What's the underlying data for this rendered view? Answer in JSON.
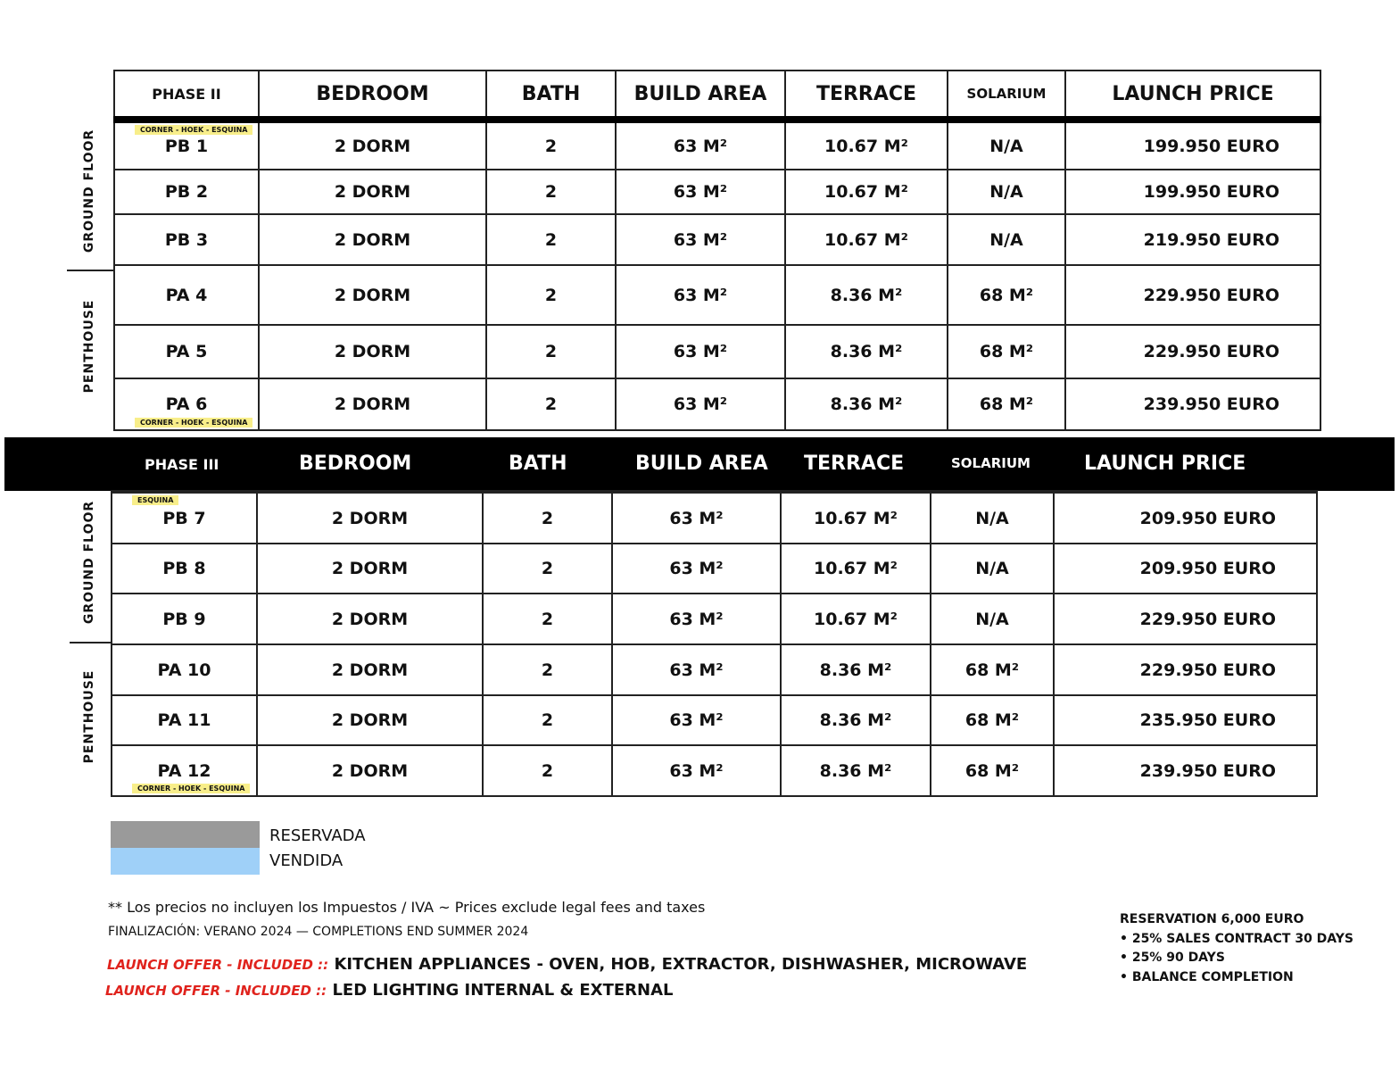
{
  "headers": {
    "bedroom": "BEDROOM",
    "bath": "BATH",
    "build_area": "BUILD AREA",
    "terrace": "TERRACE",
    "solarium": "SOLARIUM",
    "launch_price": "LAUNCH PRICE"
  },
  "phase2": {
    "title": "PHASE II",
    "groups": [
      "GROUND FLOOR",
      "PENTHOUSE"
    ],
    "rows": [
      {
        "unit": "PB 1",
        "tag": "CORNER - HOEK - ESQUINA",
        "bedroom": "2 DORM",
        "bath": "2",
        "build": "63 M²",
        "terrace": "10.67 M²",
        "solarium": "N/A",
        "price": "199.950 EURO"
      },
      {
        "unit": "PB 2",
        "bedroom": "2 DORM",
        "bath": "2",
        "build": "63 M²",
        "terrace": "10.67 M²",
        "solarium": "N/A",
        "price": "199.950 EURO"
      },
      {
        "unit": "PB 3",
        "bedroom": "2 DORM",
        "bath": "2",
        "build": "63 M²",
        "terrace": "10.67 M²",
        "solarium": "N/A",
        "price": "219.950 EURO"
      },
      {
        "unit": "PA 4",
        "bedroom": "2 DORM",
        "bath": "2",
        "build": "63 M²",
        "terrace": "8.36 M²",
        "solarium": "68 M²",
        "price": "229.950 EURO"
      },
      {
        "unit": "PA 5",
        "bedroom": "2 DORM",
        "bath": "2",
        "build": "63 M²",
        "terrace": "8.36 M²",
        "solarium": "68 M²",
        "price": "229.950 EURO"
      },
      {
        "unit": "PA 6",
        "tag": "CORNER - HOEK - ESQUINA",
        "bedroom": "2 DORM",
        "bath": "2",
        "build": "63 M²",
        "terrace": "8.36 M²",
        "solarium": "68 M²",
        "price": "239.950 EURO"
      }
    ]
  },
  "phase3": {
    "title": "PHASE III",
    "groups": [
      "GROUND FLOOR",
      "PENTHOUSE"
    ],
    "rows": [
      {
        "unit": "PB 7",
        "tag": "ESQUINA",
        "bedroom": "2 DORM",
        "bath": "2",
        "build": "63 M²",
        "terrace": "10.67 M²",
        "solarium": "N/A",
        "price": "209.950 EURO"
      },
      {
        "unit": "PB 8",
        "bedroom": "2 DORM",
        "bath": "2",
        "build": "63 M²",
        "terrace": "10.67 M²",
        "solarium": "N/A",
        "price": "209.950 EURO"
      },
      {
        "unit": "PB 9",
        "bedroom": "2 DORM",
        "bath": "2",
        "build": "63 M²",
        "terrace": "10.67 M²",
        "solarium": "N/A",
        "price": "229.950 EURO"
      },
      {
        "unit": "PA 10",
        "bedroom": "2 DORM",
        "bath": "2",
        "build": "63 M²",
        "terrace": "8.36 M²",
        "solarium": "68 M²",
        "price": "229.950 EURO"
      },
      {
        "unit": "PA 11",
        "bedroom": "2 DORM",
        "bath": "2",
        "build": "63 M²",
        "terrace": "8.36 M²",
        "solarium": "68 M²",
        "price": "235.950 EURO"
      },
      {
        "unit": "PA 12",
        "tag": "CORNER - HOEK - ESQUINA",
        "bedroom": "2 DORM",
        "bath": "2",
        "build": "63 M²",
        "terrace": "8.36 M²",
        "solarium": "68 M²",
        "price": "239.950 EURO"
      }
    ]
  },
  "legend": [
    {
      "label": "RESERVADA",
      "color": "#9a9a9a"
    },
    {
      "label": "VENDIDA",
      "color": "#9fd0f8"
    }
  ],
  "notes": {
    "taxes": "** Los precios no incluyen los Impuestos / IVA ~ Prices exclude legal fees and taxes",
    "completion": "FINALIZACIÓN: VERANO 2024 — COMPLETIONS END SUMMER 2024"
  },
  "offers": [
    {
      "prefix": "LAUNCH OFFER - INCLUDED ::",
      "text": "KITCHEN APPLIANCES - OVEN, HOB, EXTRACTOR, DISHWASHER, MICROWAVE"
    },
    {
      "prefix": "LAUNCH OFFER - INCLUDED ::",
      "text": "LED LIGHTING INTERNAL & EXTERNAL"
    }
  ],
  "payment": [
    "RESERVATION 6,000 EURO",
    "• 25% SALES CONTRACT 30 DAYS",
    "• 25% 90 DAYS",
    "• BALANCE COMPLETION"
  ]
}
